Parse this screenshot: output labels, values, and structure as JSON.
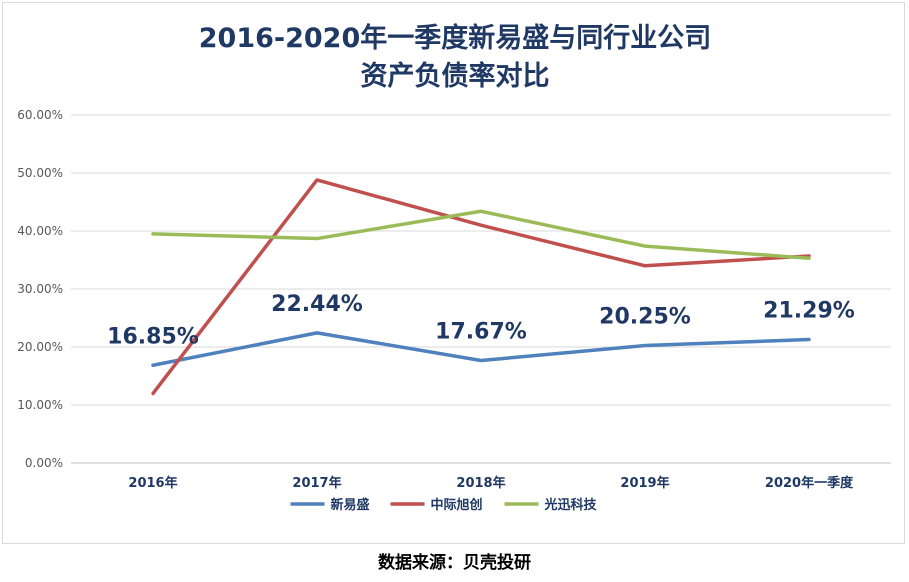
{
  "chart_data": {
    "type": "line",
    "title_lines": [
      "2016-2020年一季度新易盛与同行业公司",
      "资产负债率对比"
    ],
    "categories": [
      "2016年",
      "2017年",
      "2018年",
      "2019年",
      "2020年一季度"
    ],
    "ylim": [
      0,
      60
    ],
    "yticks": [
      "0.00%",
      "10.00%",
      "20.00%",
      "30.00%",
      "40.00%",
      "50.00%",
      "60.00%"
    ],
    "grid": true,
    "legend_position": "bottom",
    "series": [
      {
        "name": "新易盛",
        "color": "#4f81bd",
        "values": [
          16.85,
          22.44,
          17.67,
          20.25,
          21.29
        ],
        "data_labels": [
          "16.85%",
          "22.44%",
          "17.67%",
          "20.25%",
          "21.29%"
        ]
      },
      {
        "name": "中际旭创",
        "color": "#c0504d",
        "values": [
          12.0,
          48.8,
          41.0,
          34.0,
          35.7
        ]
      },
      {
        "name": "光迅科技",
        "color": "#9bbb59",
        "values": [
          39.5,
          38.7,
          43.4,
          37.4,
          35.3
        ]
      }
    ]
  },
  "source_text": "数据来源：贝壳投研"
}
